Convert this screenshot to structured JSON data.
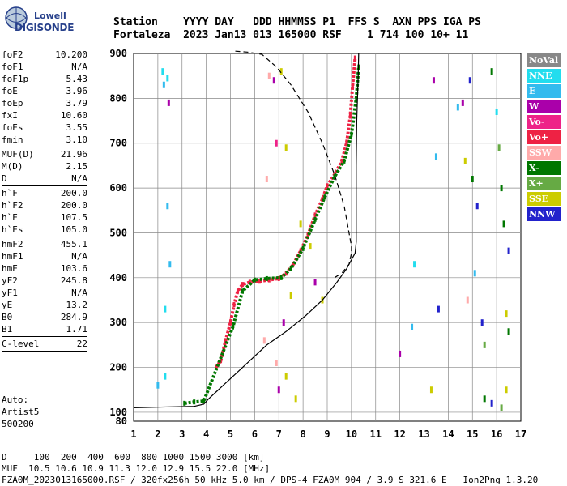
{
  "logo": {
    "line1": "Lowell",
    "line2": "DIGISONDE"
  },
  "header": {
    "labels_line": "Station    YYYY DAY   DDD HHMMSS P1  FFS S  AXN PPS IGA PS",
    "values_line": "Fortaleza  2023 Jan13 013 165000 RSF    1 714 100 10+ 11"
  },
  "params": {
    "group1": [
      {
        "label": "foF2",
        "value": "10.200"
      },
      {
        "label": "foF1",
        "value": "N/A"
      },
      {
        "label": "foF1p",
        "value": "5.43"
      },
      {
        "label": "foE",
        "value": "3.96"
      },
      {
        "label": "foEp",
        "value": "3.79"
      },
      {
        "label": "fxI",
        "value": "10.60"
      },
      {
        "label": "foEs",
        "value": "3.55"
      },
      {
        "label": "fmin",
        "value": "3.10"
      }
    ],
    "group2": [
      {
        "label": "MUF(D)",
        "value": "21.96"
      },
      {
        "label": "M(D)",
        "value": "2.15"
      },
      {
        "label": "D",
        "value": "N/A"
      }
    ],
    "group3": [
      {
        "label": "h`F",
        "value": "200.0"
      },
      {
        "label": "h`F2",
        "value": "200.0"
      },
      {
        "label": "h`E",
        "value": "107.5"
      },
      {
        "label": "h`Es",
        "value": "105.0"
      }
    ],
    "group4": [
      {
        "label": "hmF2",
        "value": "455.1"
      },
      {
        "label": "hmF1",
        "value": "N/A"
      },
      {
        "label": "hmE",
        "value": "103.6"
      },
      {
        "label": "yF2",
        "value": "245.8"
      },
      {
        "label": "yF1",
        "value": "N/A"
      },
      {
        "label": "yE",
        "value": "13.2"
      },
      {
        "label": "B0",
        "value": "284.9"
      },
      {
        "label": "B1",
        "value": "1.71"
      }
    ],
    "group5": [
      {
        "label": "C-level",
        "value": "22"
      }
    ]
  },
  "auto": {
    "line1": "Auto:",
    "line2": "Artist5",
    "line3": "500200"
  },
  "legend": [
    {
      "label": "NoVal",
      "color": "#888888"
    },
    {
      "label": "NNE",
      "color": "#22ddee"
    },
    {
      "label": "E",
      "color": "#33bbee"
    },
    {
      "label": "W",
      "color": "#aa00aa"
    },
    {
      "label": "Vo-",
      "color": "#ee2288"
    },
    {
      "label": "Vo+",
      "color": "#ee2244"
    },
    {
      "label": "SSW",
      "color": "#ffaaaa"
    },
    {
      "label": "X-",
      "color": "#007700"
    },
    {
      "label": "X+",
      "color": "#66aa44"
    },
    {
      "label": "SSE",
      "color": "#cccc00"
    },
    {
      "label": "NNW",
      "color": "#2222cc"
    }
  ],
  "footer": {
    "line1": "D     100  200  400  600  800 1000 1500 3000 [km]",
    "line2": "MUF  10.5 10.6 10.9 11.3 12.0 12.9 15.5 22.0 [MHz]",
    "line3": "FZA0M_2023013165000.RSF / 320fx256h 50 kHz 5.0 km / DPS-4 FZA0M 904 / 3.9 S 321.6 E   Ion2Png 1.3.20"
  },
  "chart_data": {
    "type": "scatter",
    "title": "",
    "xlabel": "",
    "ylabel": "",
    "xlim": [
      1,
      17
    ],
    "ylim": [
      80,
      900
    ],
    "x_ticks": [
      1,
      2,
      3,
      4,
      5,
      6,
      7,
      8,
      9,
      10,
      11,
      12,
      13,
      14,
      15,
      16,
      17
    ],
    "y_ticks": [
      80,
      100,
      200,
      300,
      400,
      500,
      600,
      700,
      800,
      900
    ],
    "grid": true,
    "series": [
      {
        "name": "Vo+",
        "type": "trace",
        "points": [
          [
            4.4,
            200
          ],
          [
            4.6,
            215
          ],
          [
            4.8,
            260
          ],
          [
            5.0,
            300
          ],
          [
            5.15,
            340
          ],
          [
            5.3,
            370
          ],
          [
            5.5,
            385
          ],
          [
            5.8,
            390
          ],
          [
            6.2,
            392
          ],
          [
            6.6,
            395
          ],
          [
            7.0,
            398
          ],
          [
            7.3,
            410
          ],
          [
            7.6,
            430
          ],
          [
            7.9,
            460
          ],
          [
            8.2,
            495
          ],
          [
            8.5,
            540
          ],
          [
            8.8,
            575
          ],
          [
            9.0,
            605
          ],
          [
            9.3,
            630
          ],
          [
            9.6,
            660
          ],
          [
            9.8,
            700
          ],
          [
            9.95,
            760
          ],
          [
            10.05,
            830
          ],
          [
            10.15,
            890
          ]
        ]
      },
      {
        "name": "X-",
        "type": "trace",
        "points": [
          [
            3.1,
            120
          ],
          [
            3.5,
            123
          ],
          [
            3.9,
            125
          ],
          [
            5.1,
            290
          ],
          [
            5.5,
            370
          ],
          [
            6.0,
            395
          ],
          [
            6.5,
            398
          ],
          [
            7.1,
            400
          ],
          [
            7.5,
            420
          ],
          [
            8.0,
            465
          ],
          [
            8.5,
            530
          ],
          [
            8.9,
            580
          ],
          [
            9.3,
            625
          ],
          [
            9.7,
            660
          ],
          [
            10.0,
            720
          ],
          [
            10.2,
            800
          ],
          [
            10.3,
            870
          ]
        ]
      },
      {
        "name": "profile",
        "type": "line",
        "points": [
          [
            1.0,
            110
          ],
          [
            2.5,
            112
          ],
          [
            3.5,
            113
          ],
          [
            3.9,
            118
          ],
          [
            4.1,
            130
          ],
          [
            4.4,
            145
          ],
          [
            4.8,
            165
          ],
          [
            5.2,
            185
          ],
          [
            5.8,
            215
          ],
          [
            6.5,
            250
          ],
          [
            7.3,
            280
          ],
          [
            8.1,
            315
          ],
          [
            8.8,
            350
          ],
          [
            9.4,
            390
          ],
          [
            9.8,
            420
          ],
          [
            10.0,
            440
          ],
          [
            10.15,
            455
          ],
          [
            10.2,
            480
          ],
          [
            10.2,
            550
          ],
          [
            10.2,
            650
          ],
          [
            10.22,
            750
          ],
          [
            10.28,
            850
          ],
          [
            10.3,
            900
          ]
        ]
      },
      {
        "name": "model",
        "type": "dashed",
        "points": [
          [
            5.2,
            905
          ],
          [
            5.7,
            903
          ],
          [
            6.3,
            898
          ],
          [
            6.9,
            870
          ],
          [
            7.5,
            830
          ],
          [
            8.2,
            770
          ],
          [
            8.8,
            700
          ],
          [
            9.3,
            630
          ],
          [
            9.7,
            560
          ],
          [
            9.9,
            500
          ],
          [
            10.0,
            470
          ],
          [
            10.0,
            455
          ],
          [
            9.9,
            430
          ],
          [
            9.6,
            410
          ],
          [
            9.3,
            400
          ]
        ]
      }
    ]
  }
}
